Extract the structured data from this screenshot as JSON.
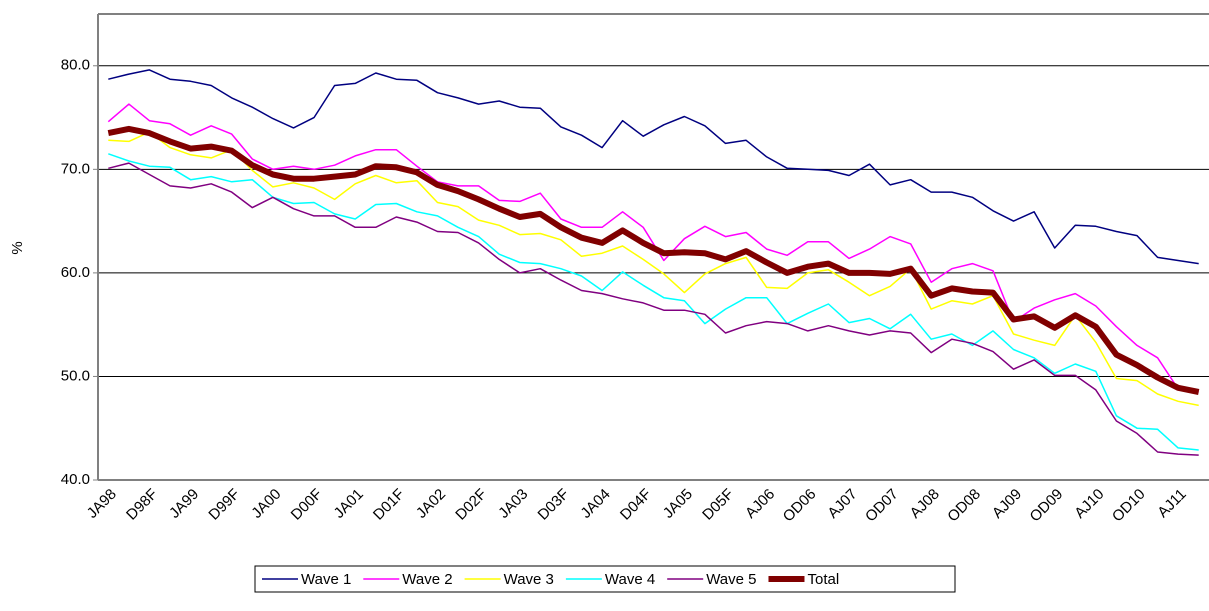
{
  "chart_data": {
    "type": "line",
    "y_label": "%",
    "categories": [
      "JA98",
      null,
      "D98F",
      null,
      "JA99",
      null,
      "D99F",
      null,
      "JA00",
      null,
      "D00F",
      null,
      "JA01",
      null,
      "D01F",
      null,
      "JA02",
      null,
      "D02F",
      null,
      "JA03",
      null,
      "D03F",
      null,
      "JA04",
      null,
      "D04F",
      null,
      "JA05",
      null,
      "D05F",
      null,
      "AJ06",
      null,
      "OD06",
      null,
      "AJ07",
      null,
      "OD07",
      null,
      "AJ08",
      null,
      "OD08",
      null,
      "AJ09",
      null,
      "OD09",
      null,
      "AJ10",
      null,
      "OD10",
      null,
      "AJ11",
      null
    ],
    "ylim": [
      40,
      85
    ],
    "yticks": [
      {
        "value": 40,
        "label": "40.0"
      },
      {
        "value": 50,
        "label": "50.0"
      },
      {
        "value": 60,
        "label": "60.0"
      },
      {
        "value": 70,
        "label": "70.0"
      },
      {
        "value": 80,
        "label": "80.0"
      }
    ],
    "grid": true,
    "legend": "bottom",
    "series": [
      {
        "name": "Wave 1",
        "color": "#000080",
        "linewidth": 1.5,
        "values": [
          78.7,
          79.2,
          79.6,
          78.7,
          78.5,
          78.1,
          76.9,
          76.0,
          74.9,
          74.0,
          75.0,
          78.1,
          78.3,
          79.3,
          78.7,
          78.6,
          77.4,
          76.9,
          76.3,
          76.6,
          76.0,
          75.9,
          74.1,
          73.3,
          72.1,
          74.7,
          73.2,
          74.3,
          75.1,
          74.2,
          72.5,
          72.8,
          71.2,
          70.1,
          70.0,
          69.9,
          69.4,
          70.5,
          68.5,
          69.0,
          67.8,
          67.8,
          67.3,
          66.0,
          65.0,
          65.9,
          62.4,
          64.6,
          64.5,
          64.0,
          63.6,
          61.5,
          61.2,
          60.9
        ]
      },
      {
        "name": "Wave 2",
        "color": "#ff00ff",
        "linewidth": 1.5,
        "values": [
          74.6,
          76.3,
          74.7,
          74.4,
          73.3,
          74.2,
          73.4,
          71.0,
          70.0,
          70.3,
          70.0,
          70.4,
          71.3,
          71.9,
          71.9,
          70.3,
          68.8,
          68.4,
          68.4,
          67.0,
          66.9,
          67.7,
          65.2,
          64.4,
          64.4,
          65.9,
          64.4,
          61.2,
          63.3,
          64.5,
          63.5,
          63.9,
          62.3,
          61.7,
          63.0,
          63.0,
          61.4,
          62.3,
          63.5,
          62.8,
          59.1,
          60.4,
          60.9,
          60.2,
          55.3,
          56.6,
          57.4,
          58.0,
          56.8,
          54.8,
          53.0,
          51.8,
          48.8,
          48.5
        ]
      },
      {
        "name": "Wave 3",
        "color": "#ffff00",
        "linewidth": 1.5,
        "values": [
          72.8,
          72.7,
          73.6,
          72.1,
          71.4,
          71.1,
          71.9,
          69.9,
          68.3,
          68.7,
          68.2,
          67.1,
          68.6,
          69.4,
          68.7,
          68.9,
          66.8,
          66.4,
          65.1,
          64.6,
          63.7,
          63.8,
          63.2,
          61.6,
          61.9,
          62.6,
          61.3,
          59.9,
          58.1,
          59.9,
          60.9,
          61.5,
          58.6,
          58.5,
          60.0,
          60.3,
          59.1,
          57.8,
          58.7,
          60.4,
          56.5,
          57.3,
          57.0,
          57.8,
          54.1,
          53.5,
          53.0,
          55.9,
          53.3,
          49.8,
          49.6,
          48.3,
          47.6,
          47.2
        ]
      },
      {
        "name": "Wave 4",
        "color": "#00ffff",
        "linewidth": 1.5,
        "values": [
          71.5,
          70.8,
          70.3,
          70.2,
          69.0,
          69.3,
          68.8,
          69.0,
          67.3,
          66.7,
          66.8,
          65.7,
          65.2,
          66.6,
          66.7,
          65.9,
          65.5,
          64.4,
          63.5,
          61.8,
          61.0,
          60.9,
          60.4,
          59.7,
          58.3,
          60.1,
          58.8,
          57.6,
          57.3,
          55.1,
          56.5,
          57.6,
          57.6,
          55.1,
          56.1,
          57.0,
          55.2,
          55.6,
          54.6,
          56.0,
          53.6,
          54.1,
          53.0,
          54.4,
          52.6,
          51.8,
          50.3,
          51.2,
          50.5,
          46.2,
          45.0,
          44.9,
          43.1,
          42.9
        ]
      },
      {
        "name": "Wave 5",
        "color": "#800080",
        "linewidth": 1.5,
        "values": [
          70.1,
          70.6,
          69.5,
          68.4,
          68.2,
          68.6,
          67.8,
          66.3,
          67.3,
          66.2,
          65.5,
          65.5,
          64.4,
          64.4,
          65.4,
          64.9,
          64.0,
          63.9,
          62.9,
          61.3,
          60.0,
          60.4,
          59.3,
          58.3,
          58.0,
          57.5,
          57.1,
          56.4,
          56.4,
          56.0,
          54.2,
          54.9,
          55.3,
          55.1,
          54.4,
          54.9,
          54.4,
          54.0,
          54.4,
          54.2,
          52.3,
          53.6,
          53.2,
          52.4,
          50.7,
          51.6,
          50.1,
          50.1,
          48.7,
          45.7,
          44.5,
          42.7,
          42.5,
          42.4
        ]
      },
      {
        "name": "Total",
        "color": "#800000",
        "linewidth": 6,
        "values": [
          73.5,
          73.9,
          73.5,
          72.7,
          72.0,
          72.2,
          71.8,
          70.4,
          69.5,
          69.1,
          69.1,
          69.3,
          69.5,
          70.3,
          70.2,
          69.7,
          68.5,
          67.9,
          67.1,
          66.2,
          65.4,
          65.7,
          64.4,
          63.4,
          62.9,
          64.1,
          62.9,
          61.9,
          62.0,
          61.9,
          61.3,
          62.1,
          61.0,
          60.0,
          60.6,
          60.9,
          60.0,
          60.0,
          59.9,
          60.4,
          57.8,
          58.5,
          58.2,
          58.1,
          55.5,
          55.8,
          54.7,
          55.9,
          54.8,
          52.1,
          51.1,
          49.9,
          48.9,
          48.5
        ]
      }
    ]
  }
}
